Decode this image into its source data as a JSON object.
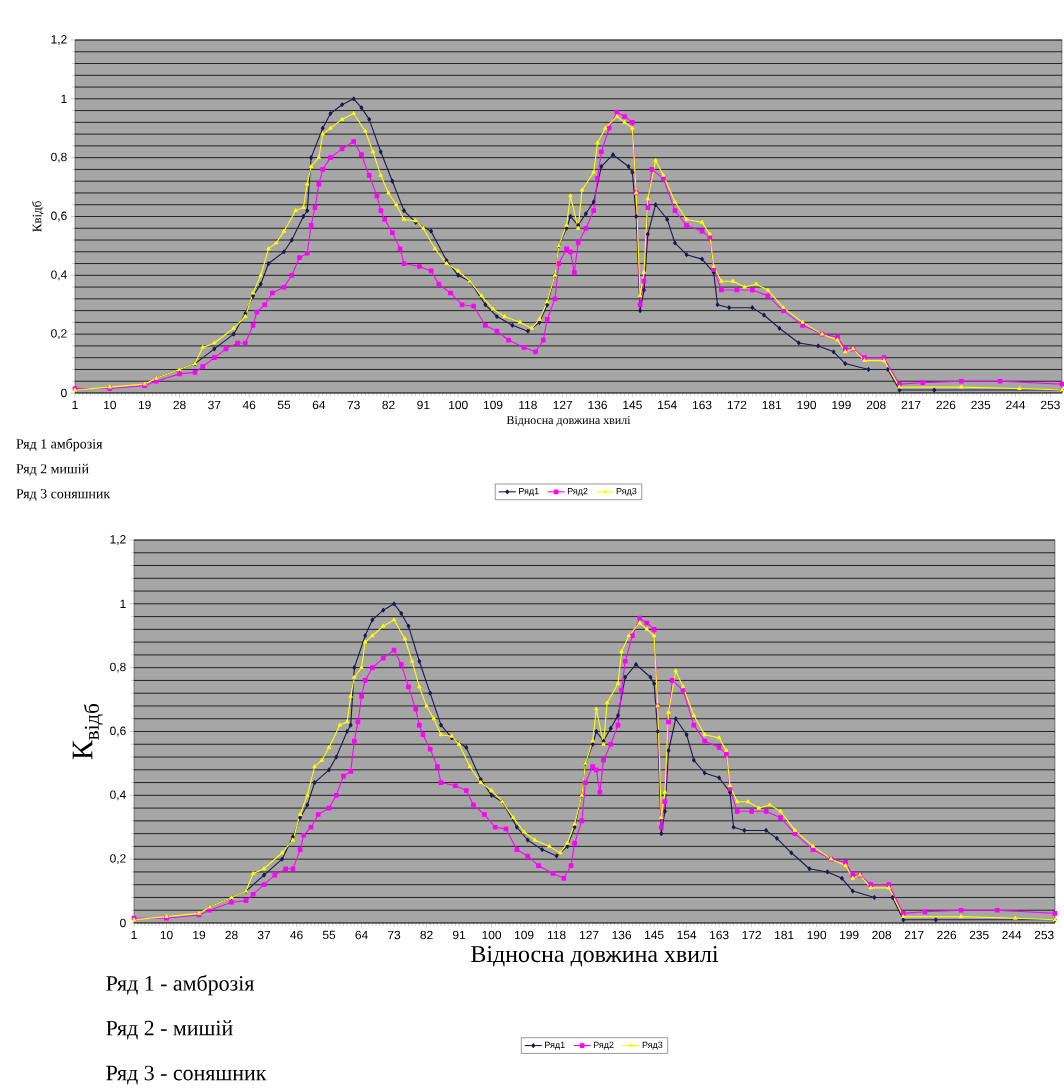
{
  "chart_data": [
    {
      "type": "line",
      "xlabel": "Відносна довжина хвилі",
      "ylabel": "Квідб",
      "xlim": [
        1,
        256
      ],
      "xticks": [
        1,
        10,
        19,
        28,
        37,
        46,
        55,
        64,
        73,
        82,
        91,
        100,
        109,
        118,
        127,
        136,
        145,
        154,
        163,
        172,
        181,
        190,
        199,
        208,
        217,
        226,
        235,
        244,
        253
      ],
      "ylim": [
        0,
        1.2
      ],
      "yticks": [
        0,
        {
          "value": 0.2,
          "label": "0,2"
        },
        {
          "value": 0.4,
          "label": "0,4"
        },
        {
          "value": 0.6,
          "label": "0,6"
        },
        {
          "value": 0.8,
          "label": "0,8"
        },
        1,
        {
          "value": 1.2,
          "label": "1,2"
        }
      ],
      "grid": "y",
      "legend": "bottom",
      "annotations": [
        "Ряд 1  амброзія",
        "Ряд 2  мишій",
        "Ряд 3  соняшник"
      ],
      "series": [
        {
          "name": "Ряд1",
          "color": "#1a1a50",
          "marker": "diamond",
          "x": [
            22,
            28,
            32,
            37,
            42,
            45,
            47,
            49,
            51,
            55,
            57,
            60,
            61,
            62,
            65,
            67,
            70,
            73,
            75,
            77,
            80,
            83,
            86,
            89,
            93,
            97,
            100,
            103,
            107,
            110,
            114,
            118,
            121,
            123,
            125,
            126,
            128,
            129,
            131,
            133,
            135,
            137,
            140,
            144,
            145,
            146,
            147,
            148,
            149,
            151,
            154,
            156,
            159,
            163,
            166,
            167,
            170,
            176,
            179,
            183,
            188,
            193,
            197,
            200,
            206,
            211,
            214,
            223,
            256
          ],
          "values": [
            0.05,
            0.08,
            0.1,
            0.15,
            0.2,
            0.27,
            0.33,
            0.37,
            0.44,
            0.48,
            0.52,
            0.6,
            0.62,
            0.8,
            0.9,
            0.95,
            0.98,
            1.0,
            0.97,
            0.93,
            0.82,
            0.72,
            0.62,
            0.58,
            0.55,
            0.45,
            0.4,
            0.38,
            0.3,
            0.26,
            0.23,
            0.21,
            0.24,
            0.3,
            0.4,
            0.5,
            0.56,
            0.6,
            0.57,
            0.61,
            0.65,
            0.77,
            0.81,
            0.77,
            0.75,
            0.6,
            0.28,
            0.35,
            0.54,
            0.64,
            0.59,
            0.51,
            0.47,
            0.455,
            0.41,
            0.3,
            0.29,
            0.29,
            0.265,
            0.22,
            0.17,
            0.16,
            0.14,
            0.1,
            0.08,
            0.08,
            0.01,
            0.01,
            0.01
          ]
        },
        {
          "name": "Ряд2",
          "color": "#ff00ff",
          "marker": "square",
          "x": [
            1,
            10,
            19,
            22,
            28,
            32,
            34,
            37,
            40,
            43,
            45,
            47,
            48,
            50,
            52,
            55,
            57,
            59,
            61,
            62,
            63,
            64,
            65,
            67,
            70,
            73,
            75,
            77,
            79,
            80,
            81,
            83,
            85,
            86,
            90,
            93,
            95,
            98,
            101,
            104,
            107,
            110,
            113,
            117,
            120,
            122,
            123,
            125,
            126,
            128,
            129,
            130,
            131,
            133,
            135,
            136,
            137,
            139,
            141,
            143,
            145,
            146,
            147,
            148,
            149,
            150,
            153,
            156,
            159,
            163,
            165,
            166,
            168,
            172,
            176,
            180,
            184,
            189,
            194,
            198,
            200,
            202,
            205,
            210,
            214,
            220,
            230,
            240,
            256
          ],
          "values": [
            0.015,
            0.015,
            0.025,
            0.04,
            0.065,
            0.07,
            0.09,
            0.12,
            0.15,
            0.17,
            0.17,
            0.23,
            0.275,
            0.3,
            0.34,
            0.36,
            0.4,
            0.46,
            0.475,
            0.57,
            0.63,
            0.71,
            0.76,
            0.8,
            0.83,
            0.855,
            0.81,
            0.74,
            0.67,
            0.62,
            0.59,
            0.545,
            0.49,
            0.44,
            0.43,
            0.415,
            0.37,
            0.34,
            0.3,
            0.295,
            0.23,
            0.21,
            0.18,
            0.155,
            0.14,
            0.18,
            0.25,
            0.32,
            0.44,
            0.49,
            0.48,
            0.41,
            0.51,
            0.56,
            0.62,
            0.73,
            0.82,
            0.9,
            0.955,
            0.94,
            0.92,
            0.68,
            0.3,
            0.38,
            0.63,
            0.76,
            0.73,
            0.62,
            0.57,
            0.55,
            0.53,
            0.42,
            0.35,
            0.35,
            0.35,
            0.33,
            0.28,
            0.23,
            0.2,
            0.19,
            0.15,
            0.15,
            0.12,
            0.12,
            0.03,
            0.035,
            0.04,
            0.04,
            0.03
          ]
        },
        {
          "name": "Ряд3",
          "color": "#ffff00",
          "marker": "triangle",
          "x": [
            1,
            10,
            19,
            22,
            28,
            32,
            34,
            37,
            42,
            45,
            47,
            49,
            51,
            53,
            55,
            58,
            60,
            61,
            62,
            64,
            65,
            67,
            70,
            73,
            76,
            78,
            80,
            82,
            84,
            86,
            89,
            91,
            94,
            97,
            100,
            103,
            106,
            109,
            112,
            116,
            119,
            121,
            123,
            125,
            126,
            128,
            129,
            131,
            132,
            135,
            136,
            138,
            141,
            143,
            145,
            146,
            147,
            148,
            149,
            151,
            153,
            156,
            159,
            163,
            165,
            166,
            168,
            171,
            174,
            177,
            180,
            184,
            189,
            194,
            198,
            200,
            202,
            205,
            210,
            214,
            230,
            245,
            256
          ],
          "values": [
            0.01,
            0.02,
            0.03,
            0.05,
            0.08,
            0.1,
            0.155,
            0.17,
            0.22,
            0.26,
            0.34,
            0.4,
            0.49,
            0.51,
            0.55,
            0.62,
            0.63,
            0.71,
            0.77,
            0.8,
            0.88,
            0.9,
            0.93,
            0.95,
            0.89,
            0.82,
            0.74,
            0.68,
            0.64,
            0.59,
            0.585,
            0.56,
            0.49,
            0.44,
            0.415,
            0.38,
            0.33,
            0.285,
            0.26,
            0.24,
            0.22,
            0.25,
            0.31,
            0.4,
            0.5,
            0.57,
            0.67,
            0.56,
            0.69,
            0.75,
            0.85,
            0.9,
            0.94,
            0.92,
            0.9,
            0.68,
            0.33,
            0.41,
            0.66,
            0.79,
            0.74,
            0.65,
            0.59,
            0.58,
            0.54,
            0.43,
            0.38,
            0.38,
            0.36,
            0.37,
            0.35,
            0.29,
            0.24,
            0.2,
            0.18,
            0.14,
            0.15,
            0.11,
            0.11,
            0.02,
            0.02,
            0.015,
            0.01
          ]
        }
      ]
    },
    {
      "type": "line",
      "xlabel": "Відносна довжина хвилі",
      "ylabel": "К$_{відб}$",
      "xlim": [
        1,
        256
      ],
      "xticks": [
        1,
        10,
        19,
        28,
        37,
        46,
        55,
        64,
        73,
        82,
        91,
        100,
        109,
        118,
        127,
        136,
        145,
        154,
        163,
        172,
        181,
        190,
        199,
        208,
        217,
        226,
        235,
        244,
        253
      ],
      "ylim": [
        0,
        1.2
      ],
      "yticks": [
        0,
        {
          "value": 0.2,
          "label": "0,2"
        },
        {
          "value": 0.4,
          "label": "0,4"
        },
        {
          "value": 0.6,
          "label": "0,6"
        },
        {
          "value": 0.8,
          "label": "0,8"
        },
        1,
        {
          "value": 1.2,
          "label": "1,2"
        }
      ],
      "grid": "y",
      "legend": "bottom",
      "annotations": [
        "Ряд 1 - амброзія",
        "Ряд 2 - мишій",
        "Ряд 3 - соняшник"
      ],
      "series": [
        {
          "name": "Ряд1",
          "color": "#1a1a50",
          "marker": "diamond",
          "x": [
            22,
            28,
            32,
            37,
            42,
            45,
            47,
            49,
            51,
            55,
            57,
            60,
            61,
            62,
            65,
            67,
            70,
            73,
            75,
            77,
            80,
            83,
            86,
            89,
            93,
            97,
            100,
            103,
            107,
            110,
            114,
            118,
            121,
            123,
            125,
            126,
            128,
            129,
            131,
            133,
            135,
            137,
            140,
            144,
            145,
            146,
            147,
            148,
            149,
            151,
            154,
            156,
            159,
            163,
            166,
            167,
            170,
            176,
            179,
            183,
            188,
            193,
            197,
            200,
            206,
            211,
            214,
            223,
            256
          ],
          "values": [
            0.05,
            0.08,
            0.1,
            0.15,
            0.2,
            0.27,
            0.33,
            0.37,
            0.44,
            0.48,
            0.52,
            0.6,
            0.62,
            0.8,
            0.9,
            0.95,
            0.98,
            1.0,
            0.97,
            0.93,
            0.82,
            0.72,
            0.62,
            0.58,
            0.55,
            0.45,
            0.4,
            0.38,
            0.3,
            0.26,
            0.23,
            0.21,
            0.24,
            0.3,
            0.4,
            0.5,
            0.56,
            0.6,
            0.57,
            0.61,
            0.65,
            0.77,
            0.81,
            0.77,
            0.75,
            0.6,
            0.28,
            0.35,
            0.54,
            0.64,
            0.59,
            0.51,
            0.47,
            0.455,
            0.41,
            0.3,
            0.29,
            0.29,
            0.265,
            0.22,
            0.17,
            0.16,
            0.14,
            0.1,
            0.08,
            0.08,
            0.01,
            0.01,
            0.01
          ]
        },
        {
          "name": "Ряд2",
          "color": "#ff00ff",
          "marker": "square",
          "x": [
            1,
            10,
            19,
            22,
            28,
            32,
            34,
            37,
            40,
            43,
            45,
            47,
            48,
            50,
            52,
            55,
            57,
            59,
            61,
            62,
            63,
            64,
            65,
            67,
            70,
            73,
            75,
            77,
            79,
            80,
            81,
            83,
            85,
            86,
            90,
            93,
            95,
            98,
            101,
            104,
            107,
            110,
            113,
            117,
            120,
            122,
            123,
            125,
            126,
            128,
            129,
            130,
            131,
            133,
            135,
            136,
            137,
            139,
            141,
            143,
            145,
            146,
            147,
            148,
            149,
            150,
            153,
            156,
            159,
            163,
            165,
            166,
            168,
            172,
            176,
            180,
            184,
            189,
            194,
            198,
            200,
            202,
            205,
            210,
            214,
            220,
            230,
            240,
            256
          ],
          "values": [
            0.015,
            0.015,
            0.025,
            0.04,
            0.065,
            0.07,
            0.09,
            0.12,
            0.15,
            0.17,
            0.17,
            0.23,
            0.275,
            0.3,
            0.34,
            0.36,
            0.4,
            0.46,
            0.475,
            0.57,
            0.63,
            0.71,
            0.76,
            0.8,
            0.83,
            0.855,
            0.81,
            0.74,
            0.67,
            0.62,
            0.59,
            0.545,
            0.49,
            0.44,
            0.43,
            0.415,
            0.37,
            0.34,
            0.3,
            0.295,
            0.23,
            0.21,
            0.18,
            0.155,
            0.14,
            0.18,
            0.25,
            0.32,
            0.44,
            0.49,
            0.48,
            0.41,
            0.51,
            0.56,
            0.62,
            0.73,
            0.82,
            0.9,
            0.955,
            0.94,
            0.92,
            0.68,
            0.3,
            0.38,
            0.63,
            0.76,
            0.73,
            0.62,
            0.57,
            0.55,
            0.53,
            0.42,
            0.35,
            0.35,
            0.35,
            0.33,
            0.28,
            0.23,
            0.2,
            0.19,
            0.15,
            0.15,
            0.12,
            0.12,
            0.03,
            0.035,
            0.04,
            0.04,
            0.03
          ]
        },
        {
          "name": "Ряд3",
          "color": "#ffff00",
          "marker": "triangle",
          "x": [
            1,
            10,
            19,
            22,
            28,
            32,
            34,
            37,
            42,
            45,
            47,
            49,
            51,
            53,
            55,
            58,
            60,
            61,
            62,
            64,
            65,
            67,
            70,
            73,
            76,
            78,
            80,
            82,
            84,
            86,
            89,
            91,
            94,
            97,
            100,
            103,
            106,
            109,
            112,
            116,
            119,
            121,
            123,
            125,
            126,
            128,
            129,
            131,
            132,
            135,
            136,
            138,
            141,
            143,
            145,
            146,
            147,
            148,
            149,
            151,
            153,
            156,
            159,
            163,
            165,
            166,
            168,
            171,
            174,
            177,
            180,
            184,
            189,
            194,
            198,
            200,
            202,
            205,
            210,
            214,
            230,
            245,
            256
          ],
          "values": [
            0.01,
            0.02,
            0.03,
            0.05,
            0.08,
            0.1,
            0.155,
            0.17,
            0.22,
            0.26,
            0.34,
            0.4,
            0.49,
            0.51,
            0.55,
            0.62,
            0.63,
            0.71,
            0.77,
            0.8,
            0.88,
            0.9,
            0.93,
            0.95,
            0.89,
            0.82,
            0.74,
            0.68,
            0.64,
            0.59,
            0.585,
            0.56,
            0.49,
            0.44,
            0.415,
            0.38,
            0.33,
            0.285,
            0.26,
            0.24,
            0.22,
            0.25,
            0.31,
            0.4,
            0.5,
            0.57,
            0.67,
            0.56,
            0.69,
            0.75,
            0.85,
            0.9,
            0.94,
            0.92,
            0.9,
            0.68,
            0.33,
            0.41,
            0.66,
            0.79,
            0.74,
            0.65,
            0.59,
            0.58,
            0.54,
            0.43,
            0.38,
            0.38,
            0.36,
            0.37,
            0.35,
            0.29,
            0.24,
            0.2,
            0.18,
            0.14,
            0.15,
            0.11,
            0.11,
            0.02,
            0.02,
            0.015,
            0.01
          ]
        }
      ]
    }
  ]
}
